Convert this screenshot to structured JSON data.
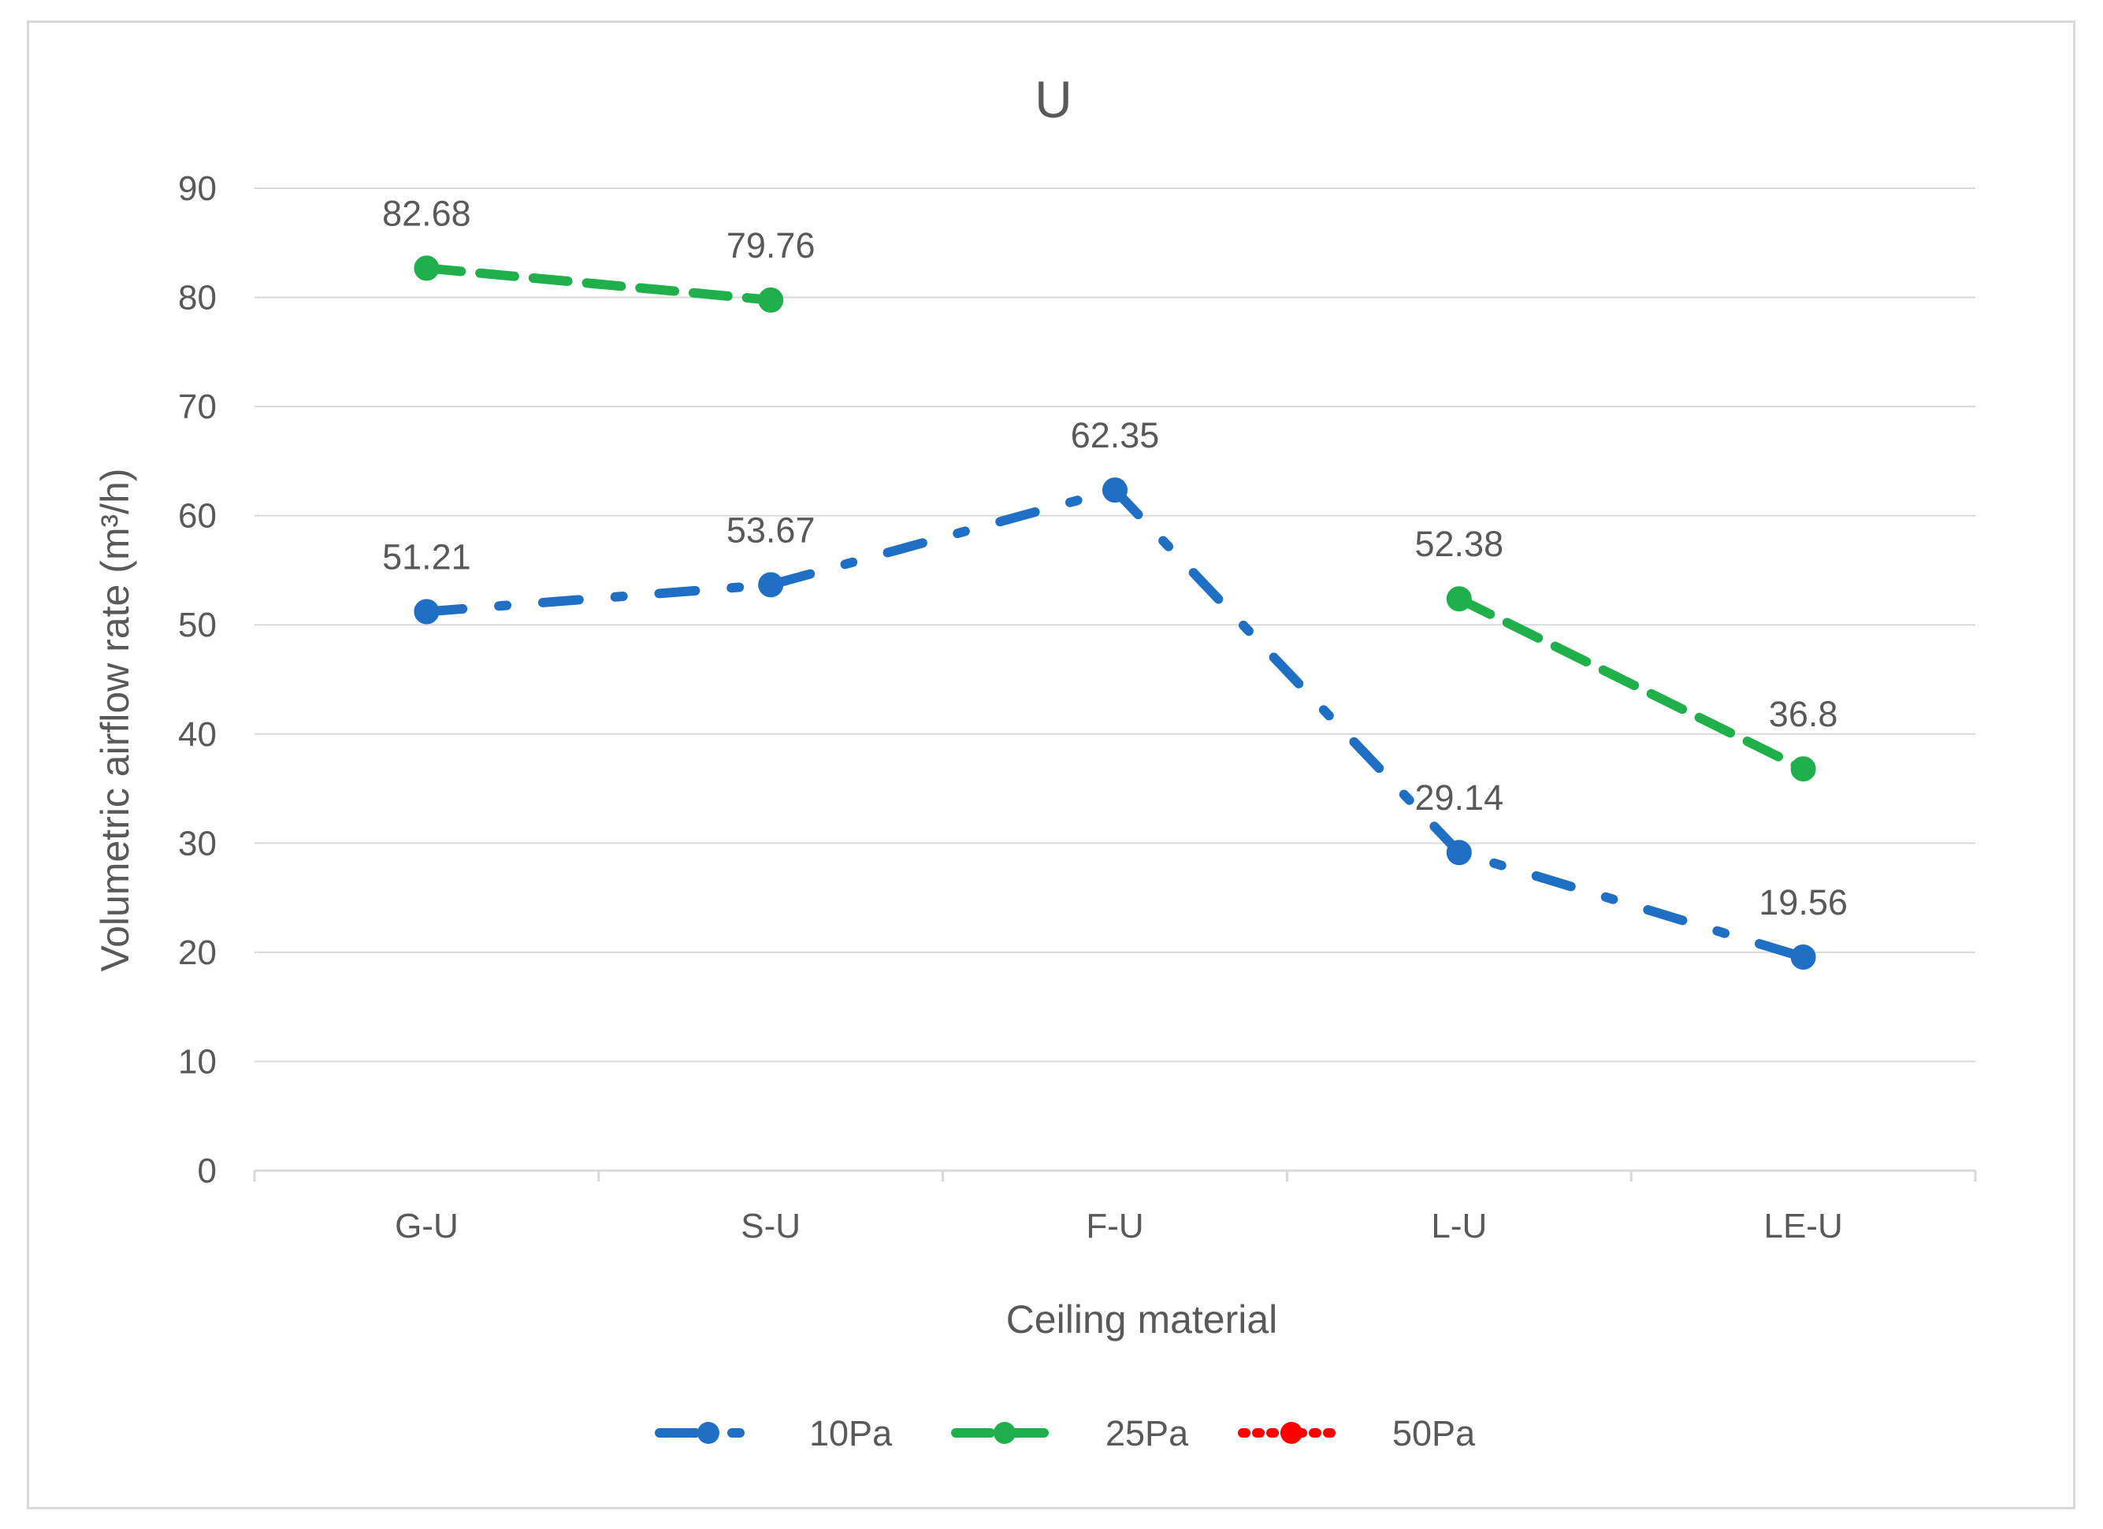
{
  "chart_data": {
    "type": "line",
    "title": "U",
    "xlabel": "Ceiling material",
    "ylabel": "Volumetric airflow rate (m³/h)",
    "categories": [
      "G-U",
      "S-U",
      "F-U",
      "L-U",
      "LE-U"
    ],
    "ylim": [
      0,
      90
    ],
    "yticks": [
      0,
      10,
      20,
      30,
      40,
      50,
      60,
      70,
      80,
      90
    ],
    "grid": true,
    "legend_position": "bottom",
    "series": [
      {
        "name": "10Pa",
        "color": "#1f6fc5",
        "style": "dash-dot",
        "values": [
          51.21,
          53.67,
          62.35,
          29.14,
          19.56
        ]
      },
      {
        "name": "25Pa",
        "color": "#1fb04b",
        "style": "dashed",
        "values": [
          82.68,
          79.76,
          null,
          52.38,
          36.8
        ]
      },
      {
        "name": "50Pa",
        "color": "#ff0000",
        "style": "dotted",
        "values": [
          null,
          null,
          null,
          null,
          null
        ]
      }
    ]
  }
}
